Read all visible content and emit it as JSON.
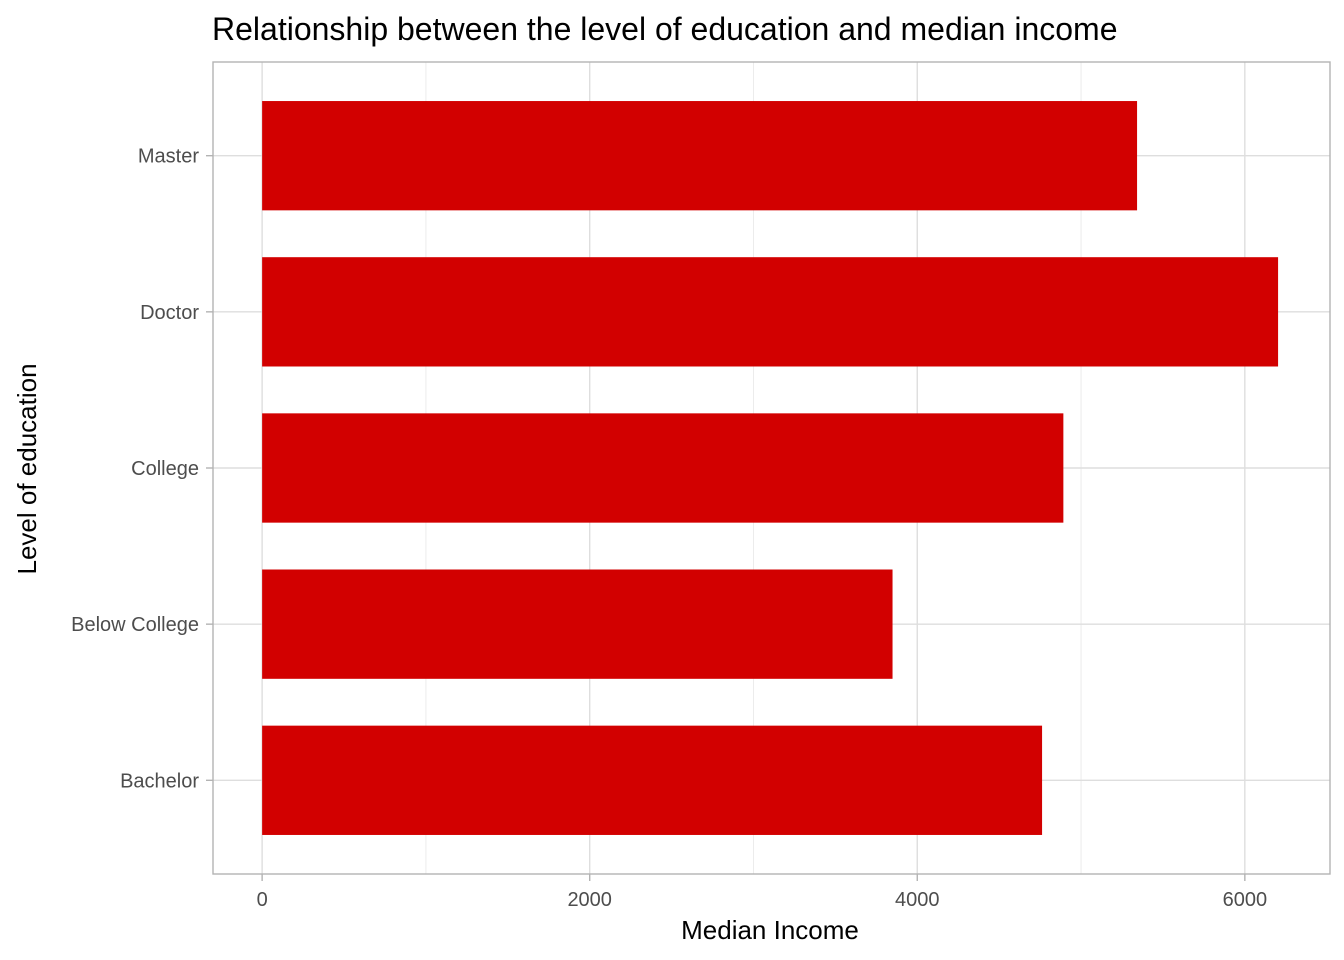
{
  "chart_data": {
    "type": "bar",
    "orientation": "horizontal",
    "title": "Relationship between the level of education and median income",
    "xlabel": "Median Income",
    "ylabel": "Level of education",
    "categories": [
      "Bachelor",
      "Below College",
      "College",
      "Doctor",
      "Master"
    ],
    "values": [
      4762,
      3849,
      4892,
      6203,
      5342
    ],
    "xlim": [
      -300,
      6520
    ],
    "xticks": [
      0,
      2000,
      4000,
      6000
    ],
    "xtick_labels": [
      "0",
      "2000",
      "4000",
      "6000"
    ],
    "grid": true,
    "legend": "none",
    "colors": {
      "bar": "#d20000",
      "grid": "#dedede",
      "panel_border": "#b3b3b3",
      "tick_text": "#4d4d4d"
    }
  }
}
